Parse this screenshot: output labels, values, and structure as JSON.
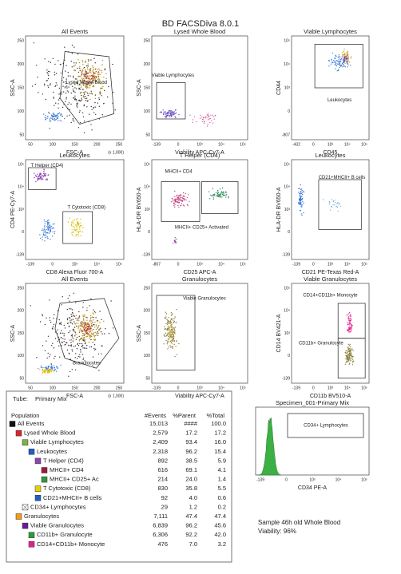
{
  "title": "BD FACSDiva 8.0.1",
  "plots": [
    {
      "title": "All Events",
      "x_label": "FSC-A",
      "y_label": "SSC-A",
      "x_scale": "(x 1,000)",
      "gates": [
        "Lysed Whole Blood"
      ],
      "x_ticks": [
        "50",
        "100",
        "150",
        "200",
        "250"
      ],
      "y_ticks": [
        "50",
        "100",
        "150",
        "200",
        "250"
      ]
    },
    {
      "title": "Lysed Whole Blood",
      "x_label": "Viability APC-Cy7-A",
      "y_label": "SSC-A",
      "gates": [
        "Viable Lymphocytes"
      ],
      "x_ticks": [
        "-139",
        "0",
        "10³",
        "10⁴",
        "10⁵"
      ],
      "y_ticks": [
        "50",
        "100",
        "150",
        "200",
        "250"
      ]
    },
    {
      "title": "Viable Lymphocytes",
      "x_label": "CD45",
      "y_label": "CD44",
      "gates": [
        "Leukocytes"
      ],
      "x_ticks": [
        "-432",
        "0",
        "10³",
        "10⁴",
        "10⁵"
      ],
      "y_ticks": [
        "-807",
        "0",
        "10³",
        "10⁴",
        "10⁵"
      ]
    },
    {
      "title": "Leukocytes",
      "x_label": "CD8 Alexa Fluor 700-A",
      "y_label": "CD4 PE-Cy7-A",
      "gates": [
        "T Helper (CD4)",
        "T Cytotoxic (CD8)"
      ],
      "x_ticks": [
        "-139",
        "0",
        "10³",
        "10⁴",
        "10⁵"
      ],
      "y_ticks": [
        "-139",
        "0",
        "10³",
        "10⁴",
        "10⁵"
      ]
    },
    {
      "title": "T Helper (CD4)",
      "x_label": "CD25 APC-A",
      "y_label": "HLA-DR BV650-A",
      "gates": [
        "MHCII+ CD4",
        "MHCII+ CD25+ Activated"
      ],
      "x_ticks": [
        "-807",
        "0",
        "10³",
        "10⁴",
        "10⁵"
      ],
      "y_ticks": [
        "-139",
        "0",
        "10³",
        "10⁴",
        "10⁵"
      ]
    },
    {
      "title": "Leukocytes",
      "x_label": "CD21 PE-Texas Red-A",
      "y_label": "HLA-DR BV650-A",
      "gates": [
        "CD21+MHCII+ B cells"
      ],
      "x_ticks": [
        "-139",
        "0",
        "10³",
        "10⁴",
        "10⁵"
      ],
      "y_ticks": [
        "-139",
        "0",
        "10³",
        "10⁴",
        "10⁵"
      ]
    },
    {
      "title": "All Events",
      "x_label": "FSC-A",
      "y_label": "SSC-A",
      "x_scale": "(x 1,000)",
      "gates": [
        "Granulocytes"
      ],
      "x_ticks": [
        "50",
        "100",
        "150",
        "200",
        "250"
      ],
      "y_ticks": [
        "50",
        "100",
        "150",
        "200",
        "250"
      ]
    },
    {
      "title": "Granulocytes",
      "x_label": "Viability APC-Cy7-A",
      "y_label": "SSC-A",
      "gates": [
        "Viable Granulocytes"
      ],
      "x_ticks": [
        "-139",
        "0",
        "10³",
        "10⁴",
        "10⁵"
      ],
      "y_ticks": [
        "50",
        "100",
        "150",
        "200",
        "250"
      ]
    },
    {
      "title": "Viable Granulocytes",
      "x_label": "CD11b BV510-A",
      "y_label": "CD14 BV421-A",
      "gates": [
        "CD14+CD11b+ Monocyte",
        "CD11b+ Granulocyte"
      ],
      "x_ticks": [
        "-139",
        "0",
        "10³",
        "10⁴",
        "10⁵"
      ],
      "y_ticks": [
        "-139",
        "0",
        "10³",
        "10⁴",
        "10⁵"
      ]
    }
  ],
  "histogram": {
    "title": "Specimen_001-Primary Mix",
    "x_label": "CD34 PE-A",
    "gates": [
      "CD34+ Lymphocytes"
    ],
    "x_ticks": [
      "-139",
      "0",
      "10³",
      "10⁴",
      "10⁵"
    ]
  },
  "table": {
    "tube_label": "Tube:",
    "tube": "Primary Mix",
    "headers": [
      "Population",
      "#Events",
      "%Parent",
      "%Total"
    ],
    "rows": [
      [
        "All Events",
        "15,013",
        "####",
        "100.0"
      ],
      [
        "Lysed Whole Blood",
        "2,579",
        "17.2",
        "17.2"
      ],
      [
        "Viable Lymphocytes",
        "2,409",
        "93.4",
        "16.0"
      ],
      [
        "Leukocytes",
        "2,318",
        "96.2",
        "15.4"
      ],
      [
        "T Helper (CD4)",
        "892",
        "38.5",
        "5.9"
      ],
      [
        "MHCII+ CD4",
        "616",
        "69.1",
        "4.1"
      ],
      [
        "MHCII+ CD25+ Ac",
        "214",
        "24.0",
        "1.4"
      ],
      [
        "T Cytotoxic (CD8)",
        "830",
        "35.8",
        "5.5"
      ],
      [
        "CD21+MHCII+ B cells",
        "92",
        "4.0",
        "0.6"
      ],
      [
        "CD34+ Lymphocytes",
        "29",
        "1.2",
        "0.2"
      ],
      [
        "Granulocytes",
        "7,111",
        "47.4",
        "47.4"
      ],
      [
        "Viable Granulocytes",
        "6,839",
        "96.2",
        "45.6"
      ],
      [
        "CD11b+ Granulocyte",
        "6,306",
        "92.2",
        "42.0"
      ],
      [
        "CD14+CD11b+ Monocyte",
        "476",
        "7.0",
        "3.2"
      ]
    ]
  },
  "sample": {
    "line1": "Sample 46h old Whole Blood",
    "line2": "Viability: 96%"
  }
}
